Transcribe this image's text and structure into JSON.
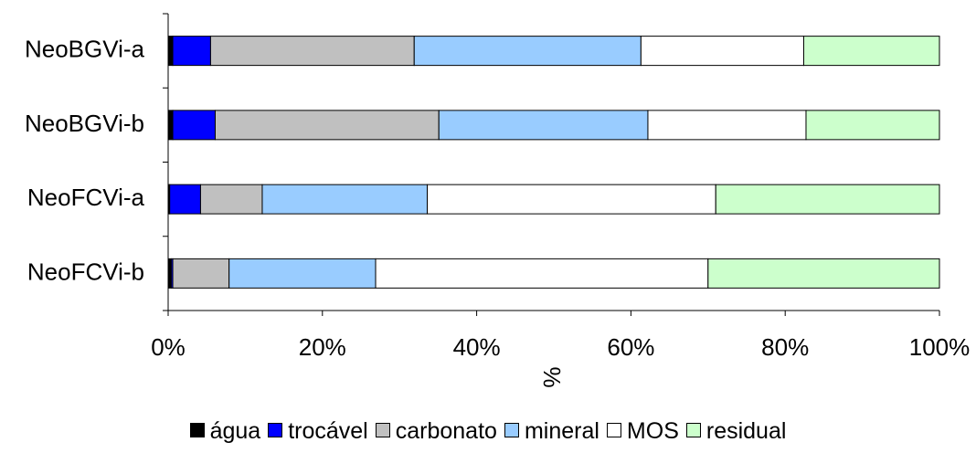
{
  "chart_data": {
    "type": "bar",
    "orientation": "horizontal",
    "stacked": "percent",
    "categories": [
      "NeoBGVi-a",
      "NeoBGVi-b",
      "NeoFCVi-a",
      "NeoFCVi-b"
    ],
    "series": [
      {
        "name": "água",
        "color": "#000000",
        "values": [
          0.6,
          0.6,
          0.2,
          0.4
        ]
      },
      {
        "name": "trocável",
        "color": "#0000ff",
        "values": [
          4.9,
          5.5,
          4.0,
          0.2
        ]
      },
      {
        "name": "carbonato",
        "color": "#c0c0c0",
        "values": [
          26.4,
          29.0,
          8.0,
          7.3
        ]
      },
      {
        "name": "mineral",
        "color": "#99ccff",
        "values": [
          29.4,
          27.1,
          21.4,
          19.0
        ]
      },
      {
        "name": "MOS",
        "color": "#ffffff",
        "values": [
          21.1,
          20.5,
          37.4,
          43.1
        ]
      },
      {
        "name": "residual",
        "color": "#ccffcc",
        "values": [
          17.6,
          17.3,
          29.0,
          30.0
        ]
      }
    ],
    "xlim": [
      0,
      100
    ],
    "xticks": [
      "0%",
      "20%",
      "40%",
      "60%",
      "80%",
      "100%"
    ],
    "xlabel": "%",
    "ylabel": "",
    "title": "",
    "grid": false,
    "legend_position": "bottom"
  }
}
